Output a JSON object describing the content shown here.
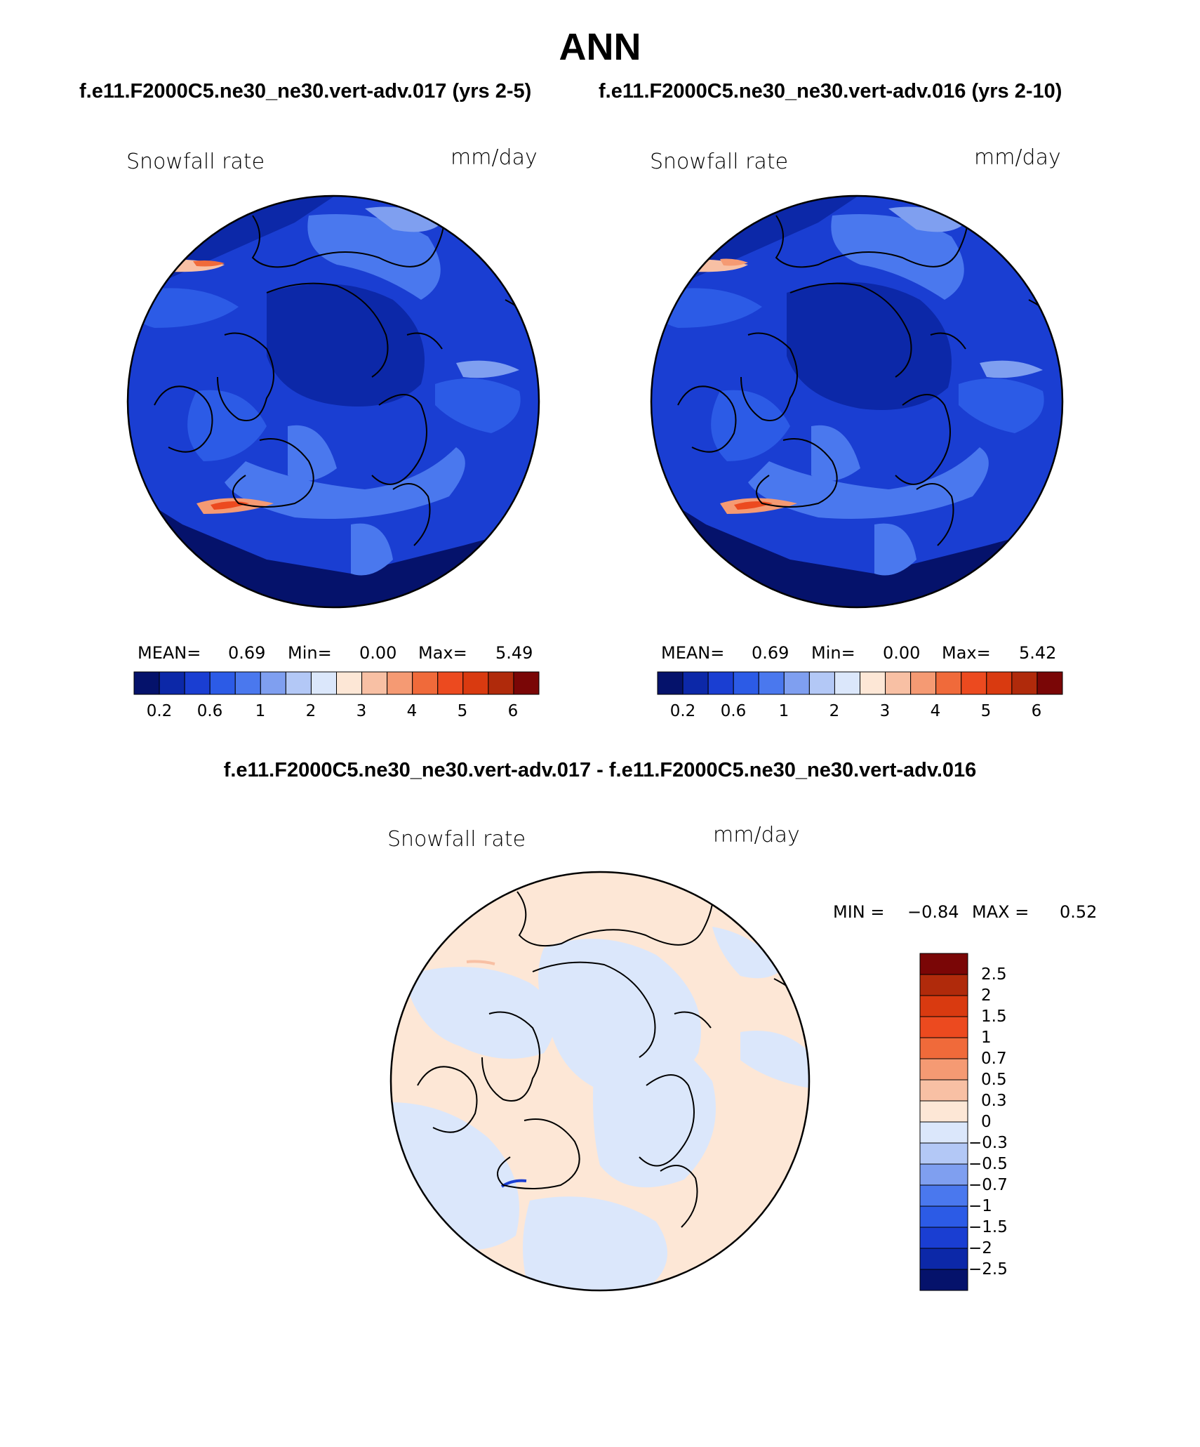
{
  "figure": {
    "title": "ANN",
    "left_subtitle": "f.e11.F2000C5.ne30_ne30.vert-adv.017 (yrs 2-5)",
    "right_subtitle": "f.e11.F2000C5.ne30_ne30.vert-adv.016 (yrs 2-10)",
    "diff_subtitle": "f.e11.F2000C5.ne30_ne30.vert-adv.017 - f.e11.F2000C5.ne30_ne30.vert-adv.016"
  },
  "panels": [
    {
      "variable": "Snowfall rate",
      "units": "mm/day",
      "mean_label": "MEAN=",
      "mean": "0.69",
      "min_label": "Min=",
      "min": "0.00",
      "max_label": "Max=",
      "max": "5.49"
    },
    {
      "variable": "Snowfall rate",
      "units": "mm/day",
      "mean_label": "MEAN=",
      "mean": "0.69",
      "min_label": "Min=",
      "min": "0.00",
      "max_label": "Max=",
      "max": "5.42"
    }
  ],
  "diff_panel": {
    "variable": "Snowfall rate",
    "units": "mm/day",
    "min_label": "MIN =",
    "min": "−0.84",
    "max_label": "MAX =",
    "max": "0.52"
  },
  "colorbar_main": {
    "tick_labels": [
      "0.2",
      "0.6",
      "1",
      "2",
      "3",
      "4",
      "5",
      "6"
    ],
    "colors": [
      "#05126b",
      "#0c28a8",
      "#1a3ed2",
      "#2c5be6",
      "#4a78ee",
      "#7f9ff0",
      "#b3c8f6",
      "#dbe7fb",
      "#fde7d6",
      "#f8c0a4",
      "#f59a73",
      "#f06a3a",
      "#ec4a1f",
      "#d93a10",
      "#b02a0b",
      "#7a0606"
    ]
  },
  "colorbar_diff": {
    "tick_labels": [
      "2.5",
      "2",
      "1.5",
      "1",
      "0.7",
      "0.5",
      "0.3",
      "0",
      "−0.3",
      "−0.5",
      "−0.7",
      "−1",
      "−1.5",
      "−2",
      "−2.5"
    ],
    "colors": [
      "#7a0606",
      "#b02a0b",
      "#d93a10",
      "#ec4a1f",
      "#f06a3a",
      "#f59a73",
      "#f8c0a4",
      "#fde7d6",
      "#dbe7fb",
      "#b3c8f6",
      "#7f9ff0",
      "#4a78ee",
      "#2c5be6",
      "#1a3ed2",
      "#0c28a8",
      "#05126b"
    ]
  }
}
